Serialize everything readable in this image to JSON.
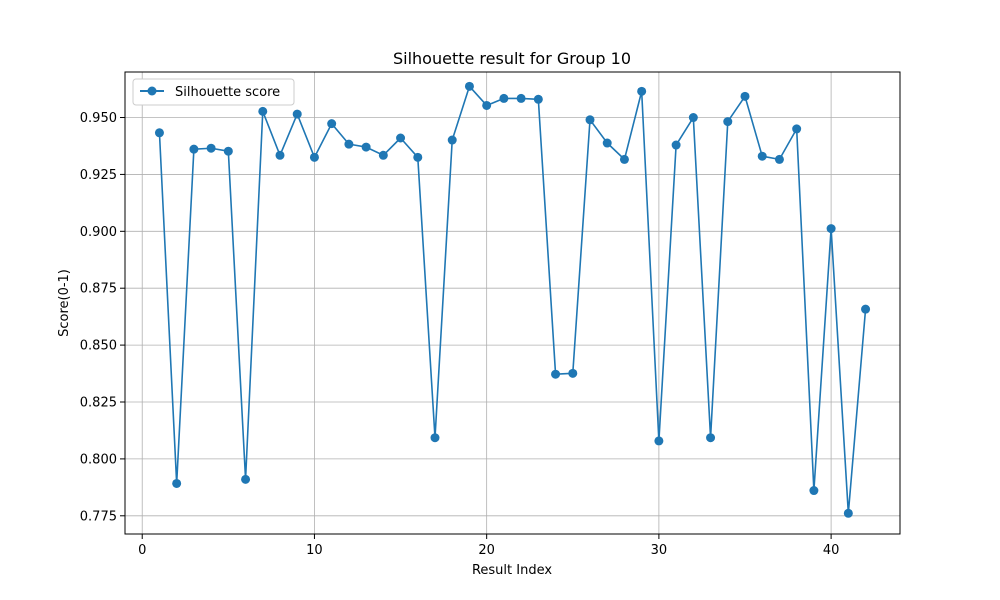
{
  "chart_data": {
    "type": "line",
    "title": "Silhouette result for Group 10",
    "xlabel": "Result Index",
    "ylabel": "Score(0-1)",
    "xlim": [
      -1,
      44
    ],
    "ylim": [
      0.767,
      0.97
    ],
    "xticks": [
      0,
      10,
      20,
      30,
      40
    ],
    "yticks": [
      0.775,
      0.8,
      0.825,
      0.85,
      0.875,
      0.9,
      0.925,
      0.95
    ],
    "ytick_labels": [
      "0.775",
      "0.800",
      "0.825",
      "0.850",
      "0.875",
      "0.900",
      "0.925",
      "0.950"
    ],
    "grid": true,
    "legend": "top-left",
    "series": [
      {
        "name": "Silhouette score",
        "color": "#1f77b4",
        "marker": "circle",
        "x": [
          1,
          2,
          3,
          4,
          5,
          6,
          7,
          8,
          9,
          10,
          11,
          12,
          13,
          14,
          15,
          16,
          17,
          18,
          19,
          20,
          21,
          22,
          23,
          24,
          25,
          26,
          27,
          28,
          29,
          30,
          31,
          32,
          33,
          34,
          35,
          36,
          37,
          38,
          39,
          40,
          41,
          42
        ],
        "y": [
          0.9433,
          0.7892,
          0.9361,
          0.9365,
          0.9352,
          0.791,
          0.9527,
          0.9334,
          0.9515,
          0.9325,
          0.9473,
          0.9383,
          0.937,
          0.9334,
          0.941,
          0.9325,
          0.8093,
          0.9401,
          0.9637,
          0.9553,
          0.9584,
          0.9584,
          0.958,
          0.8372,
          0.8376,
          0.949,
          0.9388,
          0.9316,
          0.9615,
          0.8079,
          0.9379,
          0.95,
          0.8093,
          0.9482,
          0.9593,
          0.933,
          0.9316,
          0.945,
          0.7861,
          0.9012,
          0.7761,
          0.8658
        ]
      }
    ]
  }
}
